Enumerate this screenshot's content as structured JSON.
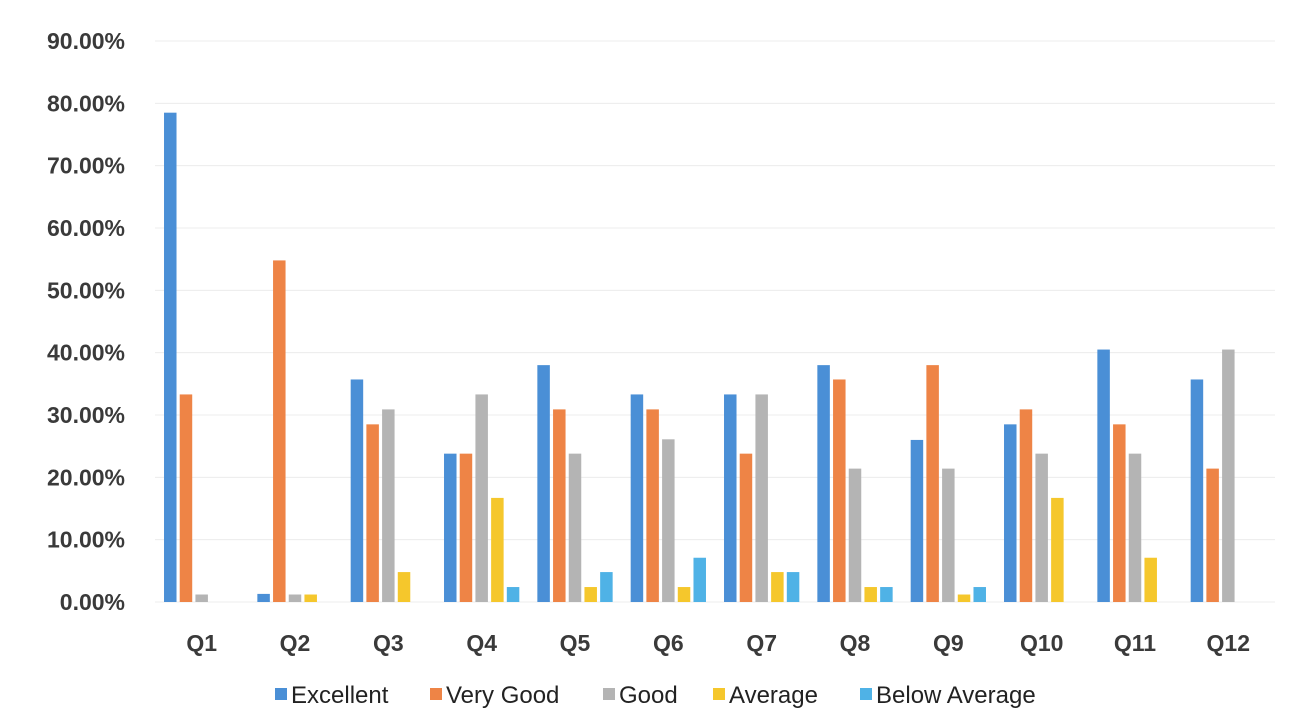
{
  "chart_data": {
    "type": "bar",
    "categories": [
      "Q1",
      "Q2",
      "Q3",
      "Q4",
      "Q5",
      "Q6",
      "Q7",
      "Q8",
      "Q9",
      "Q10",
      "Q11",
      "Q12"
    ],
    "ylim": [
      0,
      90
    ],
    "yticks": [
      0,
      10,
      20,
      30,
      40,
      50,
      60,
      70,
      80,
      90
    ],
    "ytick_labels": [
      "0.00%",
      "10.00%",
      "20.00%",
      "30.00%",
      "40.00%",
      "50.00%",
      "60.00%",
      "70.00%",
      "80.00%",
      "90.00%"
    ],
    "grid": true,
    "legend_position": "bottom",
    "series": [
      {
        "name": "Excellent",
        "color": "#4a8fd6",
        "values": [
          78.5,
          1.3,
          35.7,
          23.8,
          38.0,
          33.3,
          33.3,
          38.0,
          26.0,
          28.5,
          40.5,
          35.7
        ]
      },
      {
        "name": "Very Good",
        "color": "#ee8446",
        "values": [
          33.3,
          54.8,
          28.5,
          23.8,
          30.9,
          30.9,
          23.8,
          35.7,
          38.0,
          30.9,
          28.5,
          21.4
        ]
      },
      {
        "name": "Good",
        "color": "#b4b4b4",
        "values": [
          1.2,
          1.2,
          30.9,
          33.3,
          23.8,
          26.1,
          33.3,
          21.4,
          21.4,
          23.8,
          23.8,
          40.5
        ]
      },
      {
        "name": "Average",
        "color": "#f5c72c",
        "values": [
          0,
          1.2,
          4.8,
          16.7,
          2.4,
          2.4,
          4.8,
          2.4,
          1.2,
          16.7,
          7.1,
          0
        ]
      },
      {
        "name": "Below Average",
        "color": "#4fb2e6",
        "values": [
          0,
          0,
          0,
          2.4,
          4.8,
          7.1,
          4.8,
          2.4,
          2.4,
          0,
          0,
          0
        ]
      }
    ]
  }
}
